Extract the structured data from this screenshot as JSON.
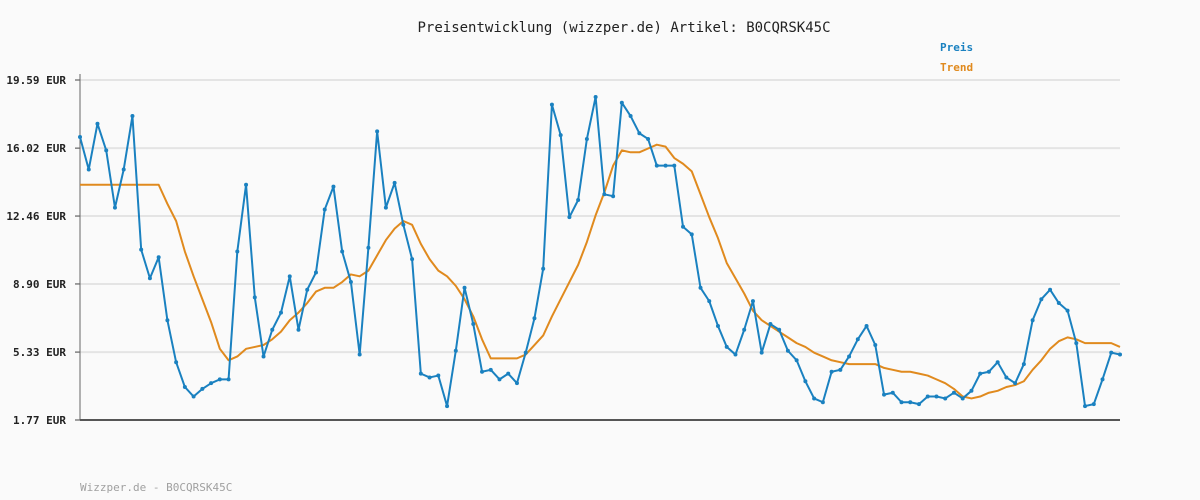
{
  "chart_data": {
    "type": "line",
    "title": "Preisentwicklung (wizzper.de) Artikel: B0CQRSK45C",
    "ylim": [
      1.77,
      19.59
    ],
    "yticks": [
      "1.77 EUR",
      "5.33 EUR",
      "8.90 EUR",
      "12.46 EUR",
      "16.02 EUR",
      "19.59 EUR"
    ],
    "ytick_values": [
      1.77,
      5.33,
      8.9,
      12.46,
      16.02,
      19.59
    ],
    "grid": true,
    "legend_position": "top-right",
    "series": [
      {
        "name": "Preis",
        "color": "#1a81c0",
        "values": [
          16.6,
          14.9,
          17.3,
          15.9,
          12.9,
          14.9,
          17.7,
          10.7,
          9.2,
          10.3,
          7.0,
          4.8,
          3.5,
          3.0,
          3.4,
          3.7,
          3.9,
          3.9,
          10.6,
          14.1,
          8.2,
          5.1,
          6.5,
          7.4,
          9.3,
          6.5,
          8.6,
          9.5,
          12.8,
          14.0,
          10.6,
          9.0,
          5.2,
          10.8,
          16.9,
          12.9,
          14.2,
          12.0,
          10.2,
          4.2,
          4.0,
          4.1,
          2.5,
          5.4,
          8.7,
          6.8,
          4.3,
          4.4,
          3.9,
          4.2,
          3.7,
          5.3,
          7.1,
          9.7,
          18.3,
          16.7,
          12.4,
          13.3,
          16.5,
          18.7,
          13.6,
          13.5,
          18.4,
          17.7,
          16.8,
          16.5,
          15.1,
          15.1,
          15.1,
          11.9,
          11.5,
          8.7,
          8.0,
          6.7,
          5.6,
          5.2,
          6.5,
          8.0,
          5.3,
          6.8,
          6.5,
          5.4,
          4.9,
          3.8,
          2.9,
          2.7,
          4.3,
          4.4,
          5.1,
          6.0,
          6.7,
          5.7,
          3.1,
          3.2,
          2.7,
          2.7,
          2.6,
          3.0,
          3.0,
          2.9,
          3.2,
          2.9,
          3.3,
          4.2,
          4.3,
          4.8,
          4.0,
          3.7,
          4.7,
          7.0,
          8.1,
          8.6,
          7.9,
          7.5,
          5.8,
          2.5,
          2.6,
          3.9,
          5.3,
          5.2
        ]
      },
      {
        "name": "Trend",
        "color": "#e08a1e",
        "values": [
          14.1,
          14.1,
          14.1,
          14.1,
          14.1,
          14.1,
          14.1,
          14.1,
          14.1,
          14.1,
          13.1,
          12.2,
          10.6,
          9.3,
          8.1,
          6.9,
          5.5,
          4.9,
          5.1,
          5.5,
          5.6,
          5.7,
          6.0,
          6.4,
          7.0,
          7.4,
          7.9,
          8.5,
          8.7,
          8.7,
          9.0,
          9.4,
          9.3,
          9.6,
          10.4,
          11.2,
          11.8,
          12.2,
          12.0,
          11.0,
          10.2,
          9.6,
          9.3,
          8.8,
          8.1,
          7.2,
          6.0,
          5.0,
          5.0,
          5.0,
          5.0,
          5.2,
          5.7,
          6.2,
          7.2,
          8.1,
          9.0,
          9.9,
          11.1,
          12.5,
          13.7,
          15.1,
          15.9,
          15.8,
          15.8,
          16.0,
          16.2,
          16.1,
          15.5,
          15.2,
          14.8,
          13.6,
          12.4,
          11.3,
          10.0,
          9.2,
          8.4,
          7.5,
          7.0,
          6.7,
          6.4,
          6.1,
          5.8,
          5.6,
          5.3,
          5.1,
          4.9,
          4.8,
          4.7,
          4.7,
          4.7,
          4.7,
          4.5,
          4.4,
          4.3,
          4.3,
          4.2,
          4.1,
          3.9,
          3.7,
          3.4,
          3.0,
          2.9,
          3.0,
          3.2,
          3.3,
          3.5,
          3.6,
          3.8,
          4.4,
          4.9,
          5.5,
          5.9,
          6.1,
          6.0,
          5.8,
          5.8,
          5.8,
          5.8,
          5.6
        ]
      }
    ]
  },
  "footer": "Wizzper.de - B0CQRSK45C"
}
